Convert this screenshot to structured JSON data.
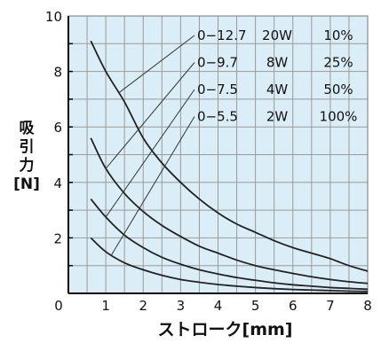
{
  "chart_data": {
    "type": "line",
    "title": "",
    "xlabel": "ストローク[mm]",
    "ylabel_lines": [
      "吸",
      "引",
      "力",
      "[N]"
    ],
    "xlim": [
      0,
      8
    ],
    "ylim": [
      0,
      10
    ],
    "x_ticks": [
      "0",
      "1",
      "2",
      "3",
      "4",
      "5",
      "6",
      "7",
      "8"
    ],
    "y_ticks": [
      "0",
      "2",
      "4",
      "6",
      "8",
      "10"
    ],
    "grid": true,
    "plot_background": "#dbeef8",
    "grid_color": "#9a9a9a",
    "line_color": "#222222",
    "series": [
      {
        "name": "0−12.7 20W 10%",
        "range": "0−12.7",
        "power": "20W",
        "duty": "10%",
        "x": [
          0.6,
          1,
          1.5,
          2,
          2.5,
          3,
          3.5,
          4,
          4.5,
          5,
          5.5,
          6,
          6.5,
          7,
          7.5,
          8
        ],
        "y": [
          9.1,
          8.0,
          6.9,
          5.6,
          4.7,
          4.0,
          3.4,
          2.9,
          2.5,
          2.2,
          1.9,
          1.65,
          1.45,
          1.25,
          1.0,
          0.8
        ]
      },
      {
        "name": "0−9.7 8W 25%",
        "range": "0−9.7",
        "power": "8W",
        "duty": "25%",
        "x": [
          0.6,
          1,
          1.5,
          2,
          2.5,
          3,
          3.5,
          4,
          4.5,
          5,
          5.5,
          6,
          6.5,
          7,
          7.5,
          8
        ],
        "y": [
          5.6,
          4.5,
          3.6,
          2.95,
          2.45,
          2.05,
          1.7,
          1.45,
          1.2,
          1.0,
          0.85,
          0.72,
          0.6,
          0.5,
          0.42,
          0.36
        ]
      },
      {
        "name": "0−7.5 4W 50%",
        "range": "0−7.5",
        "power": "4W",
        "duty": "50%",
        "x": [
          0.6,
          1,
          1.5,
          2,
          2.5,
          3,
          3.5,
          4,
          4.5,
          5,
          5.5,
          6,
          6.5,
          7,
          7.5,
          8
        ],
        "y": [
          3.4,
          2.75,
          2.1,
          1.65,
          1.3,
          1.05,
          0.85,
          0.7,
          0.57,
          0.47,
          0.38,
          0.31,
          0.26,
          0.21,
          0.18,
          0.15
        ]
      },
      {
        "name": "0−5.5 2W 100%",
        "range": "0−5.5",
        "power": "2W",
        "duty": "100%",
        "x": [
          0.6,
          1,
          1.5,
          2,
          2.5,
          3,
          3.5,
          4,
          4.5,
          5,
          5.5,
          6,
          6.5,
          7,
          7.5,
          8
        ],
        "y": [
          2.0,
          1.5,
          1.1,
          0.85,
          0.65,
          0.5,
          0.4,
          0.32,
          0.26,
          0.21,
          0.17,
          0.14,
          0.12,
          0.1,
          0.08,
          0.07
        ]
      }
    ],
    "leader_anchor_x": [
      1.35,
      1.0,
      1.0,
      1.15
    ]
  }
}
